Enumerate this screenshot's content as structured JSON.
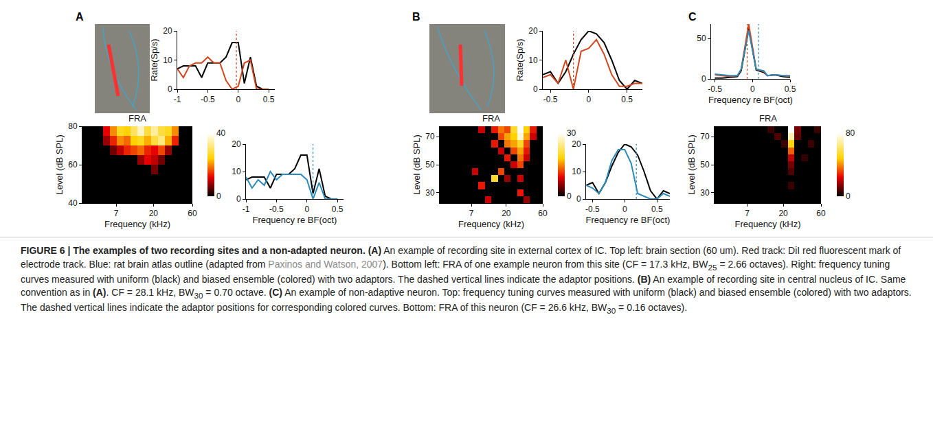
{
  "chart_data": [
    {
      "type": "line",
      "panel": "A",
      "ylabel": "Rate(Sp/s)",
      "x": [
        -1,
        -0.9,
        -0.8,
        -0.7,
        -0.6,
        -0.5,
        -0.4,
        -0.3,
        -0.2,
        -0.1,
        0,
        0.1,
        0.2,
        0.3,
        0.4,
        0.5
      ],
      "series": [
        {
          "color": "#000000",
          "values": [
            7,
            8,
            8,
            8,
            4,
            9,
            9,
            9,
            11,
            16,
            16,
            2,
            11,
            1,
            0,
            0
          ]
        },
        {
          "color": "#d2461e",
          "adaptor": -0.03,
          "values": [
            7,
            4,
            8,
            9,
            9,
            11,
            9,
            9,
            3,
            0,
            1,
            9,
            10,
            0,
            0,
            0
          ]
        }
      ],
      "xlim": [
        -1,
        0.6
      ],
      "xticks": [
        -1,
        -0.5,
        0,
        0.5
      ],
      "ylim": [
        0,
        20
      ],
      "yticks": [
        0,
        10,
        20
      ]
    },
    {
      "type": "heatmap",
      "panel": "A",
      "title": "FRA",
      "xlabel": "Frequency (kHz)",
      "ylabel": "Level (dB SPL)",
      "log": "x",
      "x_edges": [
        2.7,
        3.28,
        3.98,
        4.83,
        5.86,
        7.12,
        8.64,
        10.5,
        12.7,
        15.5,
        18.8,
        22.8,
        27.7,
        33.6,
        40.8,
        49.5,
        60
      ],
      "y_edges": [
        40,
        45,
        50,
        55,
        60,
        65,
        70,
        75,
        80
      ],
      "z": [
        [
          0,
          0,
          0,
          0,
          0,
          0,
          0,
          0,
          0,
          0,
          0,
          0,
          0,
          0,
          0,
          0
        ],
        [
          0,
          0,
          0,
          0,
          0,
          0,
          0,
          0,
          0,
          0,
          0,
          0,
          0,
          0,
          0,
          0
        ],
        [
          0,
          0,
          0,
          0,
          0,
          0,
          0,
          0,
          0,
          0,
          0,
          0,
          0,
          0,
          0,
          0
        ],
        [
          0,
          0,
          0,
          0,
          0,
          0,
          0,
          0,
          0,
          0,
          6,
          0,
          0,
          0,
          0,
          0
        ],
        [
          0,
          0,
          0,
          0,
          0,
          0,
          0,
          0,
          8,
          12,
          10,
          6,
          0,
          0,
          0,
          0
        ],
        [
          0,
          0,
          0,
          0,
          6,
          10,
          14,
          16,
          18,
          14,
          12,
          16,
          8,
          0,
          0,
          0
        ],
        [
          0,
          0,
          0,
          8,
          14,
          20,
          18,
          24,
          26,
          22,
          28,
          32,
          22,
          14,
          0,
          0
        ],
        [
          0,
          0,
          0,
          12,
          20,
          26,
          24,
          30,
          36,
          28,
          34,
          28,
          26,
          20,
          0,
          0
        ]
      ],
      "xlim": [
        2.7,
        60
      ],
      "xticks": [
        7,
        20,
        60
      ],
      "ylim": [
        40,
        80
      ],
      "yticks": [
        40,
        60,
        80
      ],
      "colorbar": {
        "range": [
          0,
          40
        ],
        "ticks": [
          0,
          40
        ]
      }
    },
    {
      "type": "line",
      "panel": "A",
      "xlabel": "Frequency re BF(oct)",
      "x": [
        -1,
        -0.9,
        -0.8,
        -0.7,
        -0.6,
        -0.5,
        -0.4,
        -0.3,
        -0.2,
        -0.1,
        0,
        0.1,
        0.2,
        0.3,
        0.4,
        0.5
      ],
      "series": [
        {
          "color": "#000000",
          "values": [
            7,
            8,
            8,
            8,
            4,
            9,
            9,
            9,
            11,
            16,
            16,
            2,
            11,
            1,
            0,
            0
          ]
        },
        {
          "color": "#2a8ab8",
          "adaptor": 0.1,
          "values": [
            8,
            4,
            7,
            5,
            10,
            7,
            9,
            9,
            9,
            9,
            7,
            0,
            6,
            0,
            0,
            0
          ]
        }
      ],
      "xlim": [
        -1,
        0.6
      ],
      "xticks": [
        -1,
        -0.5,
        0,
        0.5
      ],
      "ylim": [
        0,
        20
      ],
      "yticks": [
        0,
        10,
        20
      ]
    },
    {
      "type": "line",
      "panel": "B",
      "ylabel": "Rate(Sp/s)",
      "x": [
        -0.6,
        -0.5,
        -0.4,
        -0.3,
        -0.2,
        -0.1,
        0,
        0.1,
        0.2,
        0.3,
        0.4,
        0.5,
        0.6,
        0.7
      ],
      "series": [
        {
          "color": "#000000",
          "values": [
            5,
            6,
            2,
            6,
            12,
            17,
            20,
            19,
            16,
            10,
            3,
            0,
            3,
            2
          ]
        },
        {
          "color": "#d2461e",
          "adaptor": -0.2,
          "values": [
            4,
            5,
            2,
            10,
            0,
            13,
            14,
            17,
            12,
            5,
            1,
            1,
            2,
            2
          ]
        }
      ],
      "xlim": [
        -0.6,
        0.7
      ],
      "xticks": [
        -0.5,
        0,
        0.5
      ],
      "ylim": [
        0,
        20
      ],
      "yticks": [
        0,
        10,
        20
      ]
    },
    {
      "type": "heatmap",
      "panel": "B",
      "title": "FRA",
      "xlabel": "Frequency (kHz)",
      "ylabel": "Level (dB SPL)",
      "log": "x",
      "x_edges": [
        2.7,
        3.28,
        3.98,
        4.83,
        5.86,
        7.12,
        8.64,
        10.5,
        12.7,
        15.5,
        18.8,
        22.8,
        27.7,
        33.6,
        40.8,
        49.5,
        60
      ],
      "y_edges": [
        22.5,
        27.5,
        32.5,
        37.5,
        42.5,
        47.5,
        52.5,
        57.5,
        62.5,
        67.5,
        72.5,
        77.5
      ],
      "z": [
        [
          0,
          0,
          0,
          0,
          0,
          0,
          0,
          8,
          0,
          0,
          0,
          0,
          0,
          6,
          0,
          0
        ],
        [
          0,
          0,
          0,
          0,
          0,
          0,
          0,
          0,
          0,
          0,
          0,
          0,
          10,
          0,
          0,
          0
        ],
        [
          0,
          0,
          0,
          0,
          0,
          0,
          10,
          0,
          0,
          0,
          0,
          0,
          0,
          0,
          0,
          0
        ],
        [
          0,
          0,
          0,
          0,
          0,
          0,
          0,
          0,
          20,
          0,
          6,
          0,
          8,
          0,
          0,
          0
        ],
        [
          0,
          0,
          0,
          0,
          0,
          8,
          0,
          0,
          0,
          12,
          0,
          0,
          0,
          0,
          0,
          0
        ],
        [
          0,
          0,
          0,
          0,
          0,
          0,
          0,
          0,
          0,
          0,
          0,
          8,
          12,
          0,
          0,
          0
        ],
        [
          0,
          0,
          0,
          0,
          0,
          0,
          0,
          0,
          0,
          0,
          10,
          0,
          14,
          8,
          0,
          0
        ],
        [
          0,
          0,
          0,
          0,
          0,
          0,
          0,
          0,
          0,
          8,
          0,
          12,
          16,
          10,
          0,
          0
        ],
        [
          0,
          0,
          0,
          0,
          0,
          0,
          0,
          0,
          10,
          0,
          14,
          16,
          20,
          12,
          0,
          0
        ],
        [
          0,
          0,
          0,
          0,
          0,
          0,
          0,
          0,
          0,
          12,
          16,
          18,
          28,
          16,
          8,
          0
        ],
        [
          0,
          0,
          0,
          0,
          0,
          0,
          8,
          0,
          10,
          14,
          12,
          20,
          30,
          18,
          10,
          0
        ]
      ],
      "xlim": [
        2.7,
        60
      ],
      "xticks": [
        7,
        20,
        60
      ],
      "ylim": [
        22.5,
        77.5
      ],
      "yticks": [
        30,
        50,
        70
      ],
      "colorbar": {
        "range": [
          0,
          30
        ],
        "ticks": [
          0,
          30
        ]
      }
    },
    {
      "type": "line",
      "panel": "B",
      "xlabel": "Frequency re BF(oct)",
      "x": [
        -0.6,
        -0.5,
        -0.4,
        -0.3,
        -0.2,
        -0.1,
        0,
        0.1,
        0.2,
        0.3,
        0.4,
        0.5,
        0.6,
        0.7
      ],
      "series": [
        {
          "color": "#000000",
          "values": [
            5,
            6,
            2,
            6,
            12,
            17,
            20,
            19,
            16,
            10,
            3,
            0,
            3,
            2
          ]
        },
        {
          "color": "#2a8ab8",
          "adaptor": 0.18,
          "values": [
            5,
            4,
            2,
            6,
            14,
            18,
            18,
            13,
            2,
            1,
            0,
            0,
            2,
            1
          ]
        }
      ],
      "xlim": [
        -0.6,
        0.7
      ],
      "xticks": [
        -0.5,
        0,
        0.5
      ],
      "ylim": [
        0,
        20
      ],
      "yticks": [
        0,
        10,
        20
      ]
    },
    {
      "type": "line",
      "panel": "C",
      "xlabel": "Frequency re BF(oct)",
      "x": [
        -0.5,
        -0.4,
        -0.3,
        -0.2,
        -0.15,
        -0.05,
        0.05,
        0.15,
        0.2,
        0.3,
        0.4,
        0.5
      ],
      "series": [
        {
          "color": "#000000",
          "values": [
            1,
            1,
            2,
            3,
            10,
            62,
            11,
            8,
            4,
            5,
            3,
            2
          ]
        },
        {
          "color": "#d2461e",
          "adaptor": -0.07,
          "values": [
            5,
            4,
            3,
            4,
            12,
            68,
            12,
            9,
            4,
            5,
            4,
            3
          ]
        },
        {
          "color": "#2a8ab8",
          "adaptor": 0.08,
          "values": [
            6,
            5,
            4,
            4,
            12,
            60,
            12,
            10,
            4,
            5,
            4,
            4
          ]
        }
      ],
      "xlim": [
        -0.55,
        0.5
      ],
      "xticks": [
        -0.5,
        0,
        0.5
      ],
      "ylim": [
        0,
        68
      ],
      "yticks": [
        0,
        50
      ]
    },
    {
      "type": "heatmap",
      "panel": "C",
      "title": "FRA",
      "xlabel": "Frequency (kHz)",
      "ylabel": "Level (dB SPL)",
      "log": "x",
      "x_edges": [
        2.7,
        3.28,
        3.98,
        4.83,
        5.86,
        7.12,
        8.64,
        10.5,
        12.7,
        15.5,
        18.8,
        22.8,
        27.7,
        33.6,
        40.8,
        49.5,
        60
      ],
      "y_edges": [
        22.5,
        27.5,
        32.5,
        37.5,
        42.5,
        47.5,
        52.5,
        57.5,
        62.5,
        67.5,
        72.5,
        77.5
      ],
      "z": [
        [
          0,
          0,
          0,
          0,
          0,
          0,
          0,
          0,
          0,
          0,
          0,
          0,
          0,
          0,
          0,
          0
        ],
        [
          0,
          0,
          0,
          0,
          0,
          0,
          0,
          0,
          0,
          0,
          0,
          0,
          0,
          0,
          0,
          0
        ],
        [
          0,
          0,
          0,
          0,
          0,
          0,
          0,
          0,
          0,
          0,
          0,
          6,
          0,
          0,
          0,
          0
        ],
        [
          0,
          0,
          0,
          0,
          0,
          0,
          0,
          0,
          0,
          0,
          0,
          0,
          0,
          0,
          0,
          0
        ],
        [
          0,
          0,
          0,
          0,
          0,
          0,
          0,
          0,
          0,
          0,
          0,
          8,
          0,
          0,
          0,
          0
        ],
        [
          0,
          0,
          0,
          0,
          0,
          0,
          0,
          0,
          0,
          0,
          0,
          12,
          0,
          0,
          0,
          0
        ],
        [
          0,
          0,
          0,
          0,
          0,
          0,
          0,
          0,
          0,
          0,
          0,
          20,
          0,
          5,
          0,
          0
        ],
        [
          0,
          0,
          0,
          0,
          0,
          0,
          0,
          0,
          0,
          0,
          0,
          35,
          0,
          0,
          0,
          0
        ],
        [
          0,
          0,
          0,
          0,
          0,
          0,
          0,
          0,
          0,
          0,
          6,
          50,
          0,
          0,
          6,
          0
        ],
        [
          0,
          0,
          0,
          0,
          0,
          0,
          0,
          0,
          0,
          8,
          0,
          70,
          10,
          0,
          0,
          0
        ],
        [
          0,
          0,
          0,
          0,
          0,
          0,
          0,
          0,
          6,
          0,
          0,
          80,
          12,
          0,
          0,
          6
        ]
      ],
      "xlim": [
        2.7,
        60
      ],
      "xticks": [
        7,
        20,
        60
      ],
      "ylim": [
        22.5,
        77.5
      ],
      "yticks": [
        30,
        50,
        70
      ],
      "colorbar": {
        "range": [
          0,
          80
        ],
        "ticks": [
          0,
          80
        ]
      }
    }
  ],
  "caption": [
    {
      "style": "bold",
      "text": "FIGURE 6 | The examples of two recording sites and a non-adapted neuron. (A)"
    },
    {
      "style": "plain",
      "text": " An example of recording site in external cortex of IC. Top left: brain section (60 um). Red track: DiI red fluorescent mark of electrode track. Blue: rat brain atlas outline (adapted from "
    },
    {
      "style": "link",
      "text": "Paxinos and Watson, 2007"
    },
    {
      "style": "plain",
      "text": "). Bottom left: FRA of one example neuron from this site (CF = 17.3 kHz, BW"
    },
    {
      "style": "sub",
      "text": "25"
    },
    {
      "style": "plain",
      "text": " = 2.66 octaves). Right: frequency tuning curves measured with uniform (black) and biased ensemble (colored) with two adaptors. The dashed vertical lines indicate the adaptor positions. "
    },
    {
      "style": "bold",
      "text": "(B)"
    },
    {
      "style": "plain",
      "text": " An example of recording site in central nucleus of IC. Same convention as in "
    },
    {
      "style": "bold",
      "text": "(A)"
    },
    {
      "style": "plain",
      "text": ". CF = 28.1 kHz, BW"
    },
    {
      "style": "sub",
      "text": "30"
    },
    {
      "style": "plain",
      "text": " = 0.70 octave. "
    },
    {
      "style": "bold",
      "text": "(C)"
    },
    {
      "style": "plain",
      "text": " An example of non-adaptive neuron. Top: frequency tuning curves measured with uniform (black) and biased ensemble (colored) with two adaptors. The dashed vertical lines indicate the adaptor positions for corresponding colored curves. Bottom: FRA of this neuron (CF = 26.6 kHz, BW"
    },
    {
      "style": "sub",
      "text": "30"
    },
    {
      "style": "plain",
      "text": " = 0.16 octaves)."
    }
  ]
}
